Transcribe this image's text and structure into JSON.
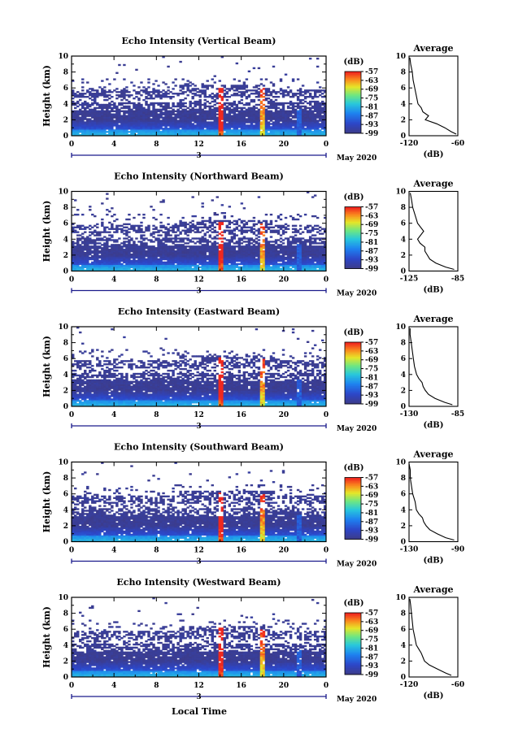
{
  "shared": {
    "y_axis_label": "Height (km)",
    "x_ticks": [
      "0",
      "4",
      "8",
      "12",
      "16",
      "20",
      "0"
    ],
    "y_ticks": [
      "0",
      "2",
      "4",
      "6",
      "8",
      "10"
    ],
    "day_marker": "3",
    "month_label": "May 2020",
    "colorbar_unit": "(dB)",
    "colorbar_ticks": [
      "-57",
      "-63",
      "-69",
      "-75",
      "-81",
      "-87",
      "-93",
      "-99"
    ],
    "avg_title": "Average",
    "avg_xlabel": "(dB)",
    "bottom_label": "Local Time"
  },
  "chart_data": [
    {
      "type": "heatmap",
      "title": "Echo Intensity (Vertical Beam)",
      "xlim": [
        0,
        24
      ],
      "ylim": [
        0,
        10
      ],
      "colorbar_range": [
        -99,
        -57
      ],
      "avg_x_ticks": [
        "-120",
        "-60"
      ],
      "avg_xlim": [
        -120,
        -60
      ],
      "average_profile": {
        "height": [
          0.2,
          0.5,
          1,
          1.5,
          2,
          2.5,
          3,
          3.5,
          4,
          5,
          6,
          7,
          8,
          9,
          9.8
        ],
        "dB": [
          -62,
          -68,
          -76,
          -86,
          -100,
          -96,
          -103,
          -105,
          -109,
          -111,
          -113,
          -115,
          -116,
          -118,
          -119
        ]
      }
    },
    {
      "type": "heatmap",
      "title": "Echo Intensity (Northward Beam)",
      "xlim": [
        0,
        24
      ],
      "ylim": [
        0,
        10
      ],
      "colorbar_range": [
        -99,
        -57
      ],
      "avg_x_ticks": [
        "-125",
        "-85"
      ],
      "avg_xlim": [
        -125,
        -85
      ],
      "average_profile": {
        "height": [
          0.2,
          0.5,
          1,
          1.5,
          2,
          2.5,
          3,
          3.5,
          4,
          5,
          6,
          7,
          8,
          9,
          9.8
        ],
        "dB": [
          -88,
          -95,
          -103,
          -108,
          -110,
          -112,
          -112,
          -116,
          -118,
          -113,
          -118,
          -120,
          -122,
          -123,
          -124
        ]
      }
    },
    {
      "type": "heatmap",
      "title": "Echo Intensity (Eastward Beam)",
      "xlim": [
        0,
        24
      ],
      "ylim": [
        0,
        10
      ],
      "colorbar_range": [
        -99,
        -57
      ],
      "avg_x_ticks": [
        "-130",
        "-85"
      ],
      "avg_xlim": [
        -130,
        -85
      ],
      "average_profile": {
        "height": [
          0.2,
          0.5,
          1,
          1.5,
          2,
          2.5,
          3,
          3.5,
          4,
          5,
          6,
          7,
          8,
          9,
          9.8
        ],
        "dB": [
          -90,
          -97,
          -106,
          -112,
          -115,
          -117,
          -118,
          -121,
          -123,
          -125,
          -126,
          -127,
          -128,
          -129,
          -129
        ]
      }
    },
    {
      "type": "heatmap",
      "title": "Echo Intensity (Southward Beam)",
      "xlim": [
        0,
        24
      ],
      "ylim": [
        0,
        10
      ],
      "colorbar_range": [
        -99,
        -57
      ],
      "avg_x_ticks": [
        "-130",
        "-90"
      ],
      "avg_xlim": [
        -130,
        -90
      ],
      "average_profile": {
        "height": [
          0.2,
          0.5,
          1,
          1.5,
          2,
          2.5,
          3,
          3.5,
          4,
          5,
          6,
          7,
          8,
          9,
          9.8
        ],
        "dB": [
          -93,
          -100,
          -107,
          -113,
          -116,
          -118,
          -119,
          -122,
          -124,
          -125,
          -127,
          -128,
          -129,
          -129,
          -130
        ]
      }
    },
    {
      "type": "heatmap",
      "title": "Echo Intensity (Westward Beam)",
      "xlim": [
        0,
        24
      ],
      "ylim": [
        0,
        10
      ],
      "colorbar_range": [
        -99,
        -57
      ],
      "avg_x_ticks": [
        "-120",
        "-60"
      ],
      "avg_xlim": [
        -120,
        -60
      ],
      "average_profile": {
        "height": [
          0.2,
          0.5,
          1,
          1.5,
          2,
          2.5,
          3,
          3.5,
          4,
          5,
          6,
          7,
          8,
          9,
          9.8
        ],
        "dB": [
          -68,
          -75,
          -85,
          -95,
          -101,
          -103,
          -105,
          -108,
          -111,
          -113,
          -115,
          -116,
          -117,
          -118,
          -119
        ]
      }
    }
  ]
}
